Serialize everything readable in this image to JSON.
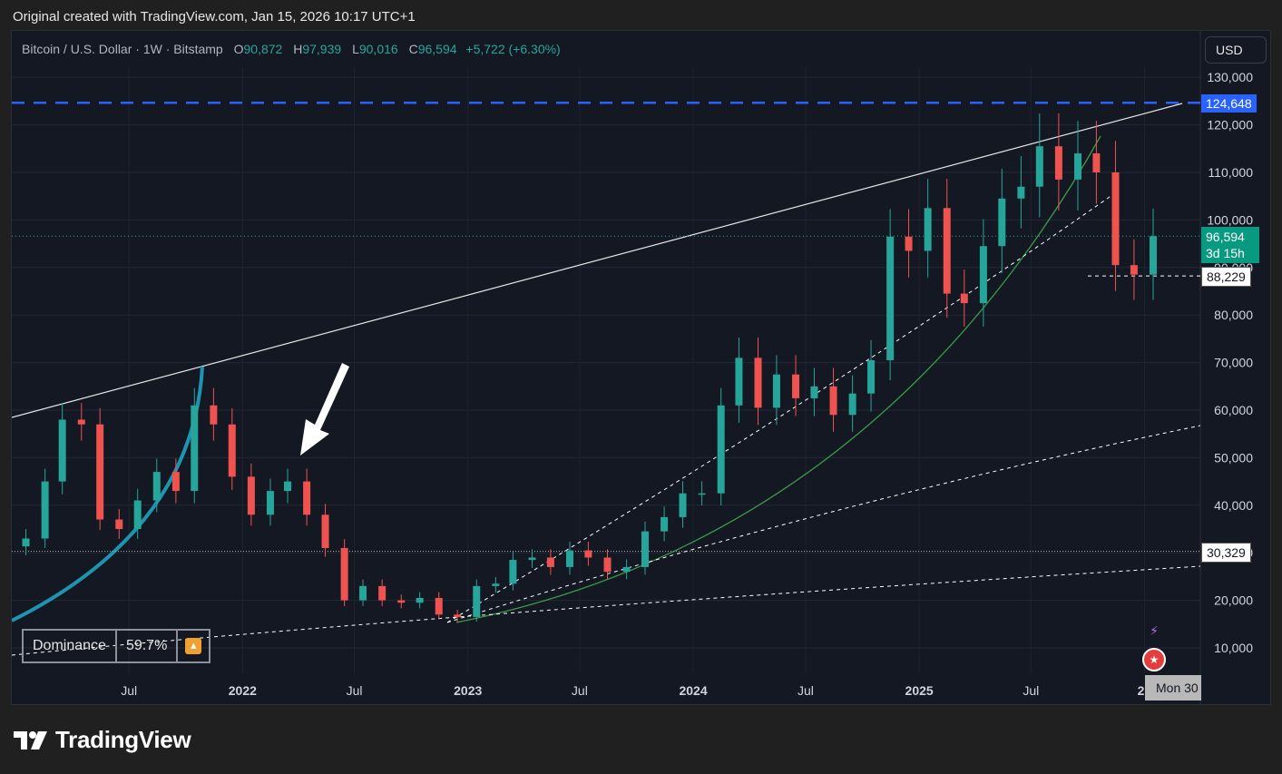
{
  "header_note": "Original created with TradingView.com, Jan 15, 2026 10:17 UTC+1",
  "legend": {
    "symbol": "Bitcoin / U.S. Dollar · 1W · Bitstamp",
    "open_label": "O",
    "open": "90,872",
    "high_label": "H",
    "high": "97,939",
    "low_label": "L",
    "low": "90,016",
    "close_label": "C",
    "close": "96,594",
    "change": "+5,722 (+6.30%)"
  },
  "currency_button": "USD",
  "price_tags": {
    "ath": "124,648",
    "last_price": "96,594",
    "countdown": "3d 15h",
    "level_88": "88,229",
    "level_30": "30,329"
  },
  "dominance": {
    "label": "Dominance",
    "value": "59.7%",
    "badge_icon": "alert-triangle-icon"
  },
  "date_badge": "Mon 30",
  "footer_brand": "TradingView",
  "colors": {
    "up": "#26a69a",
    "down": "#ef5350",
    "ath_line": "#2962ff",
    "curve": "#1e95b0",
    "green_curve": "#3c9a48",
    "background": "#141823"
  },
  "chart_data": {
    "type": "candlestick",
    "symbol": "Bitcoin / U.S. Dollar",
    "interval": "1W",
    "exchange": "Bitstamp",
    "x_ticks": [
      "Jul",
      "2022",
      "Jul",
      "2023",
      "Jul",
      "2024",
      "Jul",
      "2025",
      "Jul",
      "20"
    ],
    "y_ticks": [
      "130,000",
      "120,000",
      "110,000",
      "100,000",
      "90,000",
      "80,000",
      "70,000",
      "60,000",
      "50,000",
      "40,000",
      "30,000",
      "20,000",
      "10,000"
    ],
    "ylim": [
      0,
      135000
    ],
    "series": [
      {
        "date": "2021-01",
        "close": 33000
      },
      {
        "date": "2021-02",
        "close": 45000
      },
      {
        "date": "2021-03",
        "close": 58000
      },
      {
        "date": "2021-04",
        "close": 57000
      },
      {
        "date": "2021-05",
        "close": 37000
      },
      {
        "date": "2021-06",
        "close": 35000
      },
      {
        "date": "2021-07",
        "close": 41000
      },
      {
        "date": "2021-08",
        "close": 47000
      },
      {
        "date": "2021-09",
        "close": 43000
      },
      {
        "date": "2021-10",
        "close": 61000
      },
      {
        "date": "2021-11",
        "close": 57000
      },
      {
        "date": "2021-12",
        "close": 46000
      },
      {
        "date": "2022-01",
        "close": 38000
      },
      {
        "date": "2022-02",
        "close": 43000
      },
      {
        "date": "2022-03",
        "close": 45000
      },
      {
        "date": "2022-04",
        "close": 38000
      },
      {
        "date": "2022-05",
        "close": 31000
      },
      {
        "date": "2022-06",
        "close": 20000
      },
      {
        "date": "2022-07",
        "close": 23000
      },
      {
        "date": "2022-08",
        "close": 20000
      },
      {
        "date": "2022-09",
        "close": 19500
      },
      {
        "date": "2022-10",
        "close": 20500
      },
      {
        "date": "2022-11",
        "close": 17000
      },
      {
        "date": "2022-12",
        "close": 16500
      },
      {
        "date": "2023-01",
        "close": 23000
      },
      {
        "date": "2023-02",
        "close": 23500
      },
      {
        "date": "2023-03",
        "close": 28500
      },
      {
        "date": "2023-04",
        "close": 29000
      },
      {
        "date": "2023-05",
        "close": 27000
      },
      {
        "date": "2023-06",
        "close": 30500
      },
      {
        "date": "2023-07",
        "close": 29000
      },
      {
        "date": "2023-08",
        "close": 26000
      },
      {
        "date": "2023-09",
        "close": 27000
      },
      {
        "date": "2023-10",
        "close": 34500
      },
      {
        "date": "2023-11",
        "close": 37500
      },
      {
        "date": "2023-12",
        "close": 42500
      },
      {
        "date": "2024-01",
        "close": 42500
      },
      {
        "date": "2024-02",
        "close": 61000
      },
      {
        "date": "2024-03",
        "close": 71000
      },
      {
        "date": "2024-04",
        "close": 60500
      },
      {
        "date": "2024-05",
        "close": 67500
      },
      {
        "date": "2024-06",
        "close": 62500
      },
      {
        "date": "2024-07",
        "close": 65000
      },
      {
        "date": "2024-08",
        "close": 59000
      },
      {
        "date": "2024-09",
        "close": 63500
      },
      {
        "date": "2024-10",
        "close": 70500
      },
      {
        "date": "2024-11",
        "close": 96500
      },
      {
        "date": "2024-12",
        "close": 93500
      },
      {
        "date": "2025-01",
        "close": 102500
      },
      {
        "date": "2025-02",
        "close": 84500
      },
      {
        "date": "2025-03",
        "close": 82500
      },
      {
        "date": "2025-04",
        "close": 94500
      },
      {
        "date": "2025-05",
        "close": 104500
      },
      {
        "date": "2025-06",
        "close": 107000
      },
      {
        "date": "2025-07",
        "close": 115500
      },
      {
        "date": "2025-08",
        "close": 108500
      },
      {
        "date": "2025-09",
        "close": 114000
      },
      {
        "date": "2025-10",
        "close": 110000
      },
      {
        "date": "2025-11",
        "close": 90500
      },
      {
        "date": "2025-12",
        "close": 88500
      },
      {
        "date": "2026-01",
        "close": 96594
      }
    ],
    "levels": [
      124648,
      88229,
      30329
    ],
    "last_price": 96594
  }
}
